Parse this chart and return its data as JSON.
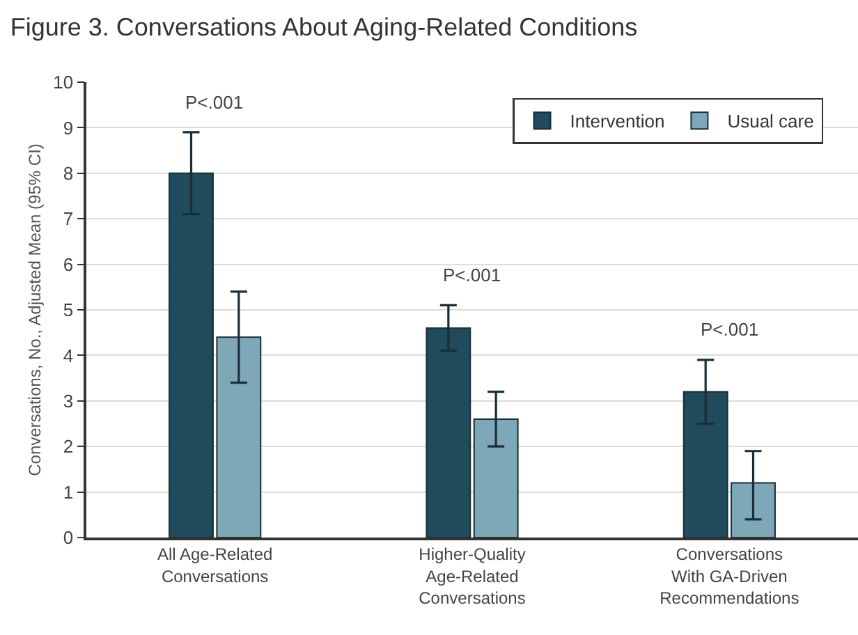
{
  "chart_data": {
    "type": "bar",
    "title": "Figure 3. Conversations About Aging-Related Conditions",
    "ylabel": "Conversations, No., Adjusted Mean (95% CI)",
    "categories": [
      "All Age-Related\nConversations",
      "Higher-Quality\nAge-Related\nConversations",
      "Conversations\nWith GA-Driven\nRecommendations"
    ],
    "series": [
      {
        "name": "Intervention",
        "color": "#1f4b5c",
        "values": [
          8.0,
          4.6,
          3.2
        ],
        "errors": [
          [
            7.1,
            8.9
          ],
          [
            4.1,
            5.1
          ],
          [
            2.5,
            3.9
          ]
        ]
      },
      {
        "name": "Usual care",
        "color": "#7ea8b7",
        "values": [
          4.4,
          2.6,
          1.2
        ],
        "errors": [
          [
            3.4,
            5.4
          ],
          [
            2.0,
            3.2
          ],
          [
            0.4,
            1.9
          ]
        ]
      }
    ],
    "annotations": [
      "P<.001",
      "P<.001",
      "P<.001"
    ],
    "ylim": [
      0,
      10
    ],
    "yticks": [
      0,
      1,
      2,
      3,
      4,
      5,
      6,
      7,
      8,
      9,
      10
    ],
    "grid": "y",
    "legend": "top right"
  }
}
